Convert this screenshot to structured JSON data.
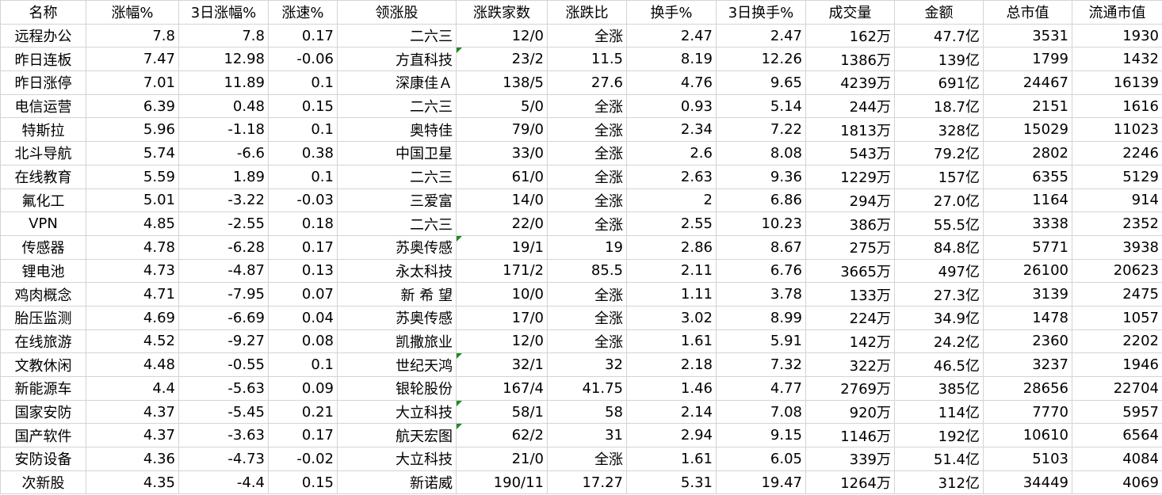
{
  "table": {
    "header": [
      "名称",
      "涨幅%",
      "3日涨幅%",
      "涨速%",
      "领涨股",
      "涨跌家数",
      "涨跌比",
      "换手%",
      "3日换手%",
      "成交量",
      "金额",
      "总市值",
      "流通市值"
    ],
    "rows": [
      [
        "远程办公",
        "7.8",
        "7.8",
        "0.17",
        "二六三",
        "12/0",
        "全涨",
        "2.47",
        "2.47",
        "162万",
        "47.7亿",
        "3531",
        "1930"
      ],
      [
        "昨日连板",
        "7.47",
        "12.98",
        "-0.06",
        "方直科技",
        "23/2",
        "11.5",
        "8.19",
        "12.26",
        "1386万",
        "139亿",
        "1799",
        "1432"
      ],
      [
        "昨日涨停",
        "7.01",
        "11.89",
        "0.1",
        "深康佳Ａ",
        "138/5",
        "27.6",
        "4.76",
        "9.65",
        "4239万",
        "691亿",
        "24467",
        "16139"
      ],
      [
        "电信运营",
        "6.39",
        "0.48",
        "0.15",
        "二六三",
        "5/0",
        "全涨",
        "0.93",
        "5.14",
        "244万",
        "18.7亿",
        "2151",
        "1616"
      ],
      [
        "特斯拉",
        "5.96",
        "-1.18",
        "0.1",
        "奥特佳",
        "79/0",
        "全涨",
        "2.34",
        "7.22",
        "1813万",
        "328亿",
        "15029",
        "11023"
      ],
      [
        "北斗导航",
        "5.74",
        "-6.6",
        "0.38",
        "中国卫星",
        "33/0",
        "全涨",
        "2.6",
        "8.08",
        "543万",
        "79.2亿",
        "2802",
        "2246"
      ],
      [
        "在线教育",
        "5.59",
        "1.89",
        "0.1",
        "二六三",
        "61/0",
        "全涨",
        "2.63",
        "9.36",
        "1229万",
        "157亿",
        "6355",
        "5129"
      ],
      [
        "氟化工",
        "5.01",
        "-3.22",
        "-0.03",
        "三爱富",
        "14/0",
        "全涨",
        "2",
        "6.86",
        "294万",
        "27.0亿",
        "1164",
        "914"
      ],
      [
        "VPN",
        "4.85",
        "-2.55",
        "0.18",
        "二六三",
        "22/0",
        "全涨",
        "2.55",
        "10.23",
        "386万",
        "55.5亿",
        "3338",
        "2352"
      ],
      [
        "传感器",
        "4.78",
        "-6.28",
        "0.17",
        "苏奥传感",
        "19/1",
        "19",
        "2.86",
        "8.67",
        "275万",
        "84.8亿",
        "5771",
        "3938"
      ],
      [
        "锂电池",
        "4.73",
        "-4.87",
        "0.13",
        "永太科技",
        "171/2",
        "85.5",
        "2.11",
        "6.76",
        "3665万",
        "497亿",
        "26100",
        "20623"
      ],
      [
        "鸡肉概念",
        "4.71",
        "-7.95",
        "0.07",
        "新 希 望",
        "10/0",
        "全涨",
        "1.11",
        "3.78",
        "133万",
        "27.3亿",
        "3139",
        "2475"
      ],
      [
        "胎压监测",
        "4.69",
        "-6.69",
        "0.04",
        "苏奥传感",
        "17/0",
        "全涨",
        "3.02",
        "8.99",
        "224万",
        "34.9亿",
        "1478",
        "1057"
      ],
      [
        "在线旅游",
        "4.52",
        "-9.27",
        "0.08",
        "凯撒旅业",
        "12/0",
        "全涨",
        "1.61",
        "5.91",
        "142万",
        "24.2亿",
        "2360",
        "2202"
      ],
      [
        "文教休闲",
        "4.48",
        "-0.55",
        "0.1",
        "世纪天鸿",
        "32/1",
        "32",
        "2.18",
        "7.32",
        "322万",
        "46.5亿",
        "3237",
        "1946"
      ],
      [
        "新能源车",
        "4.4",
        "-5.63",
        "0.09",
        "银轮股份",
        "167/4",
        "41.75",
        "1.46",
        "4.77",
        "2769万",
        "385亿",
        "28656",
        "22704"
      ],
      [
        "国家安防",
        "4.37",
        "-5.45",
        "0.21",
        "大立科技",
        "58/1",
        "58",
        "2.14",
        "7.08",
        "920万",
        "114亿",
        "7770",
        "5957"
      ],
      [
        "国产软件",
        "4.37",
        "-3.63",
        "0.17",
        "航天宏图",
        "62/2",
        "31",
        "2.94",
        "9.15",
        "1146万",
        "192亿",
        "10610",
        "6564"
      ],
      [
        "安防设备",
        "4.36",
        "-4.73",
        "-0.02",
        "大立科技",
        "21/0",
        "全涨",
        "1.61",
        "6.05",
        "339万",
        "51.4亿",
        "5103",
        "4084"
      ],
      [
        "次新股",
        "4.35",
        "-4.4",
        "0.15",
        "新诺威",
        "190/11",
        "17.27",
        "5.31",
        "19.47",
        "1264万",
        "312亿",
        "34449",
        "4069"
      ]
    ]
  }
}
